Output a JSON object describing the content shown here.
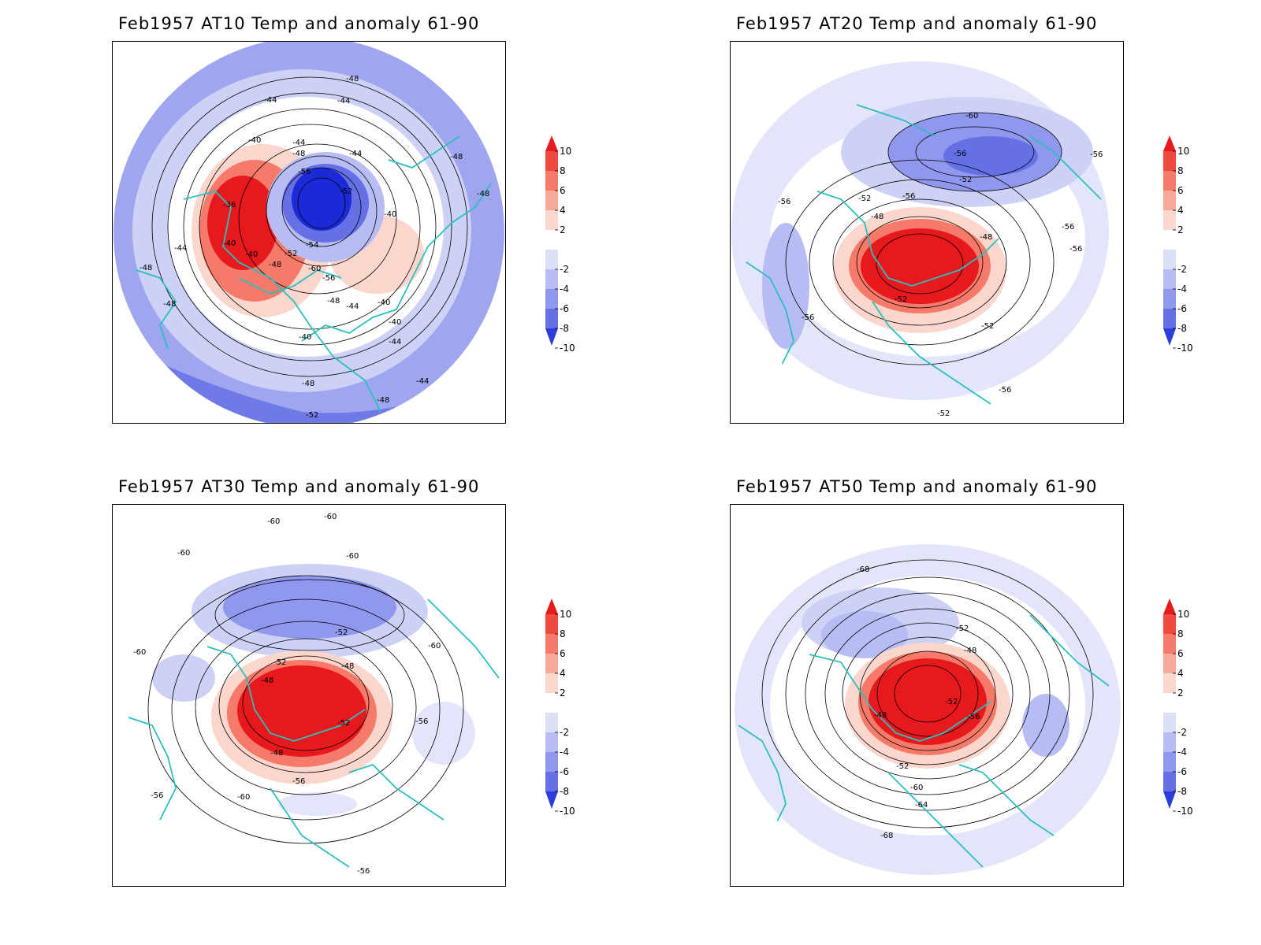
{
  "panels": [
    {
      "title": "Feb1957 AT10 Temp and anomaly 61-90",
      "contour_labels": [
        "-48",
        "-44",
        "-44",
        "-40",
        "-44",
        "-48",
        "-44",
        "-56",
        "-52",
        "-48",
        "-48",
        "-36",
        "-40",
        "-40",
        "-40",
        "-52",
        "-48",
        "-54",
        "-60",
        "-56",
        "-48",
        "-44",
        "-40",
        "-40",
        "-44",
        "-48",
        "-48",
        "-44",
        "-48",
        "-52",
        "-40",
        "-44",
        "-48"
      ]
    },
    {
      "title": "Feb1957 AT20 Temp and anomaly 61-90",
      "contour_labels": [
        "-60",
        "-56",
        "-52",
        "-52",
        "-56",
        "-56",
        "-48",
        "-48",
        "-52",
        "-56",
        "-56",
        "-52",
        "-56",
        "-56",
        "-56",
        "-52"
      ]
    },
    {
      "title": "Feb1957 AT30 Temp and anomaly 61-90",
      "contour_labels": [
        "-60",
        "-60",
        "-60",
        "-60",
        "-60",
        "-52",
        "-52",
        "-48",
        "-48",
        "-52",
        "-48",
        "-56",
        "-56",
        "-60",
        "-56",
        "-56",
        "-60"
      ]
    },
    {
      "title": "Feb1957 AT50 Temp and anomaly 61-90",
      "contour_labels": [
        "-68",
        "-52",
        "-48",
        "-52",
        "-48",
        "-56",
        "-52",
        "-60",
        "-64",
        "-68"
      ]
    }
  ],
  "colorbar": {
    "labels": [
      "10",
      "8",
      "6",
      "4",
      "2",
      "-2",
      "-4",
      "-6",
      "-8",
      "-10"
    ],
    "colors": [
      "#e8191c",
      "#f04a3e",
      "#f57a6a",
      "#f9a99a",
      "#fbd6cc",
      "#ffffff",
      "#dcdff8",
      "#b7bdf3",
      "#8f98ec",
      "#6470e4",
      "#2d3ddc"
    ]
  },
  "colors": {
    "coast": "#2bbfbf",
    "warm_strong": "#e8191c",
    "cold_strong": "#1a2ad6"
  }
}
